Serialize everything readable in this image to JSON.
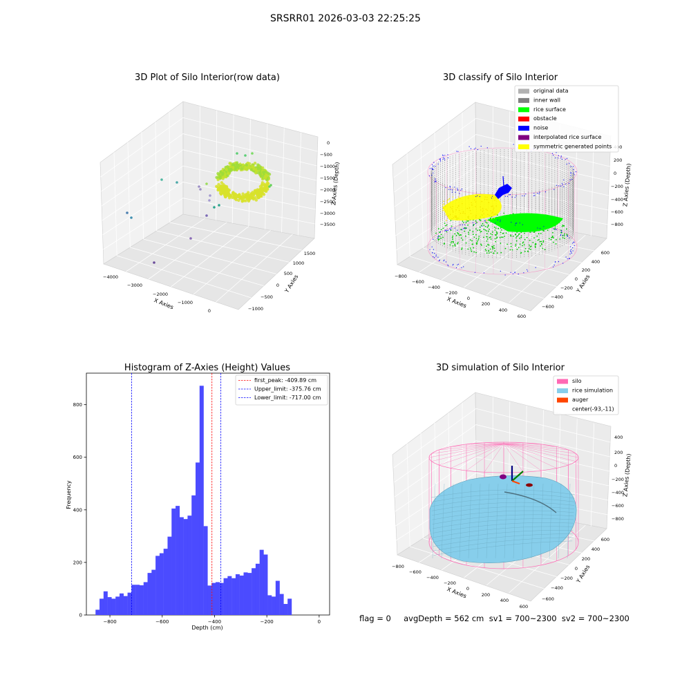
{
  "suptitle": "SRSRR01 2026-03-03 22:25:25",
  "colors": {
    "original_data": "#b2b2b2",
    "inner_wall": "#808080",
    "rice_surface": "#00ff00",
    "obstacle": "#ff0000",
    "noise": "#0000ff",
    "interpolated": "#800080",
    "symmetric": "#ffff00",
    "silo": "#ff69b4",
    "rice_sim": "#87ceeb",
    "auger": "#ff4500",
    "hist_bar": "#4b4bff"
  },
  "panel1": {
    "title": "3D Plot of Silo Interior(row data)",
    "x_label": "X Axies",
    "y_label": "Y Axies",
    "z_label": "Z Axies (Depth)",
    "x_ticks": [
      "−4000",
      "−3000",
      "−2000",
      "−1000",
      "0"
    ],
    "y_ticks": [
      "1500",
      "1000",
      "500",
      "0",
      "−500",
      "−1000"
    ],
    "z_ticks": [
      "0",
      "−500",
      "−1000",
      "−1500",
      "−2000",
      "−2500",
      "−3000",
      "−3500"
    ]
  },
  "panel2": {
    "title": "3D classify of Silo Interior",
    "x_label": "X Axies",
    "y_label": "Y Axies",
    "z_label": "Z Axies (Depth)",
    "x_ticks": [
      "−800",
      "−600",
      "−400",
      "−200",
      "0",
      "200",
      "400",
      "600"
    ],
    "y_ticks": [
      "600",
      "400",
      "200",
      "0",
      "−200",
      "−400",
      "−600"
    ],
    "z_ticks": [
      "400",
      "200",
      "0",
      "−200",
      "−400",
      "−600",
      "−800"
    ],
    "legend": [
      {
        "label": "original data",
        "color_key": "original_data"
      },
      {
        "label": "inner wall",
        "color_key": "inner_wall"
      },
      {
        "label": "rice surface",
        "color_key": "rice_surface"
      },
      {
        "label": "obstacle",
        "color_key": "obstacle"
      },
      {
        "label": "noise",
        "color_key": "noise"
      },
      {
        "label": "interpolated rice surface",
        "color_key": "interpolated"
      },
      {
        "label": "symmetric generated points",
        "color_key": "symmetric"
      }
    ]
  },
  "panel3": {
    "title": "Histogram of Z-Axies (Height) Values",
    "x_label": "Depth (cm)",
    "y_label": "Frequency",
    "legend": [
      {
        "label": "first_peak: -409.89 cm",
        "color": "#ff0000"
      },
      {
        "label": "Upper_limit: -375.76 cm",
        "color": "#0000ff"
      },
      {
        "label": "Lower_limit: -717.00 cm",
        "color": "#0000ff"
      }
    ]
  },
  "panel4": {
    "title": "3D simulation of Silo Interior",
    "x_label": "X Axies",
    "y_label": "Y Axies",
    "z_label": "Z Axies (Depth)",
    "x_ticks": [
      "−800",
      "−600",
      "−400",
      "−200",
      "0",
      "200",
      "400",
      "600"
    ],
    "y_ticks": [
      "600",
      "400",
      "200",
      "0",
      "−200",
      "−400",
      "−600"
    ],
    "z_ticks": [
      "400",
      "200",
      "0",
      "−200",
      "−400",
      "−600",
      "−800"
    ],
    "legend": [
      {
        "label": "silo",
        "color_key": "silo"
      },
      {
        "label": "rice simulation",
        "color_key": "rice_sim"
      },
      {
        "label": "auger",
        "color_key": "auger"
      },
      {
        "label": "center(-93,-11)",
        "color_key": ""
      }
    ]
  },
  "status_line": "flag = 0     avgDepth = 562 cm  sv1 = 700~2300  sv2 = 700~2300",
  "chart_data": [
    {
      "type": "scatter",
      "title": "3D Plot of Silo Interior(row data)",
      "xlabel": "X Axies",
      "ylabel": "Y Axies",
      "zlabel": "Z Axies (Depth)",
      "xlim": [
        -4200,
        300
      ],
      "ylim": [
        -1100,
        1700
      ],
      "zlim": [
        -3900,
        200
      ]
    },
    {
      "type": "scatter",
      "title": "3D classify of Silo Interior",
      "xlabel": "X Axies",
      "ylabel": "Y Axies",
      "zlabel": "Z Axies (Depth)",
      "xlim": [
        -850,
        650
      ],
      "ylim": [
        -700,
        700
      ],
      "zlim": [
        -950,
        450
      ],
      "series": [
        {
          "name": "original data"
        },
        {
          "name": "inner wall"
        },
        {
          "name": "rice surface"
        },
        {
          "name": "obstacle"
        },
        {
          "name": "noise"
        },
        {
          "name": "interpolated rice surface"
        },
        {
          "name": "symmetric generated points"
        }
      ]
    },
    {
      "type": "bar",
      "title": "Histogram of Z-Axies (Height) Values",
      "xlabel": "Depth (cm)",
      "ylabel": "Frequency",
      "x_ticks": [
        -800,
        -600,
        -400,
        -200,
        0
      ],
      "y_ticks": [
        0,
        200,
        400,
        600,
        800
      ],
      "xlim": [
        -890,
        40
      ],
      "ylim": [
        0,
        920
      ],
      "bin_start": -855,
      "bin_width": 15.3,
      "values": [
        20,
        62,
        90,
        68,
        62,
        70,
        82,
        72,
        85,
        115,
        115,
        113,
        125,
        160,
        172,
        225,
        235,
        252,
        298,
        405,
        415,
        372,
        365,
        378,
        455,
        580,
        872,
        338,
        112,
        122,
        125,
        122,
        140,
        148,
        140,
        155,
        150,
        162,
        160,
        178,
        195,
        248,
        230,
        75,
        70,
        130,
        80,
        42,
        62
      ],
      "vlines": [
        {
          "label": "first_peak: -409.89 cm",
          "x": -409.89
        },
        {
          "label": "Upper_limit: -375.76 cm",
          "x": -375.76
        },
        {
          "label": "Lower_limit: -717.00 cm",
          "x": -717.0
        }
      ]
    },
    {
      "type": "area",
      "title": "3D simulation of Silo Interior",
      "xlabel": "X Axies",
      "ylabel": "Y Axies",
      "zlabel": "Z Axies (Depth)",
      "xlim": [
        -850,
        650
      ],
      "ylim": [
        -700,
        700
      ],
      "zlim": [
        -950,
        450
      ],
      "series": [
        {
          "name": "silo"
        },
        {
          "name": "rice simulation"
        },
        {
          "name": "auger"
        },
        {
          "name": "center(-93,-11)"
        }
      ]
    }
  ]
}
